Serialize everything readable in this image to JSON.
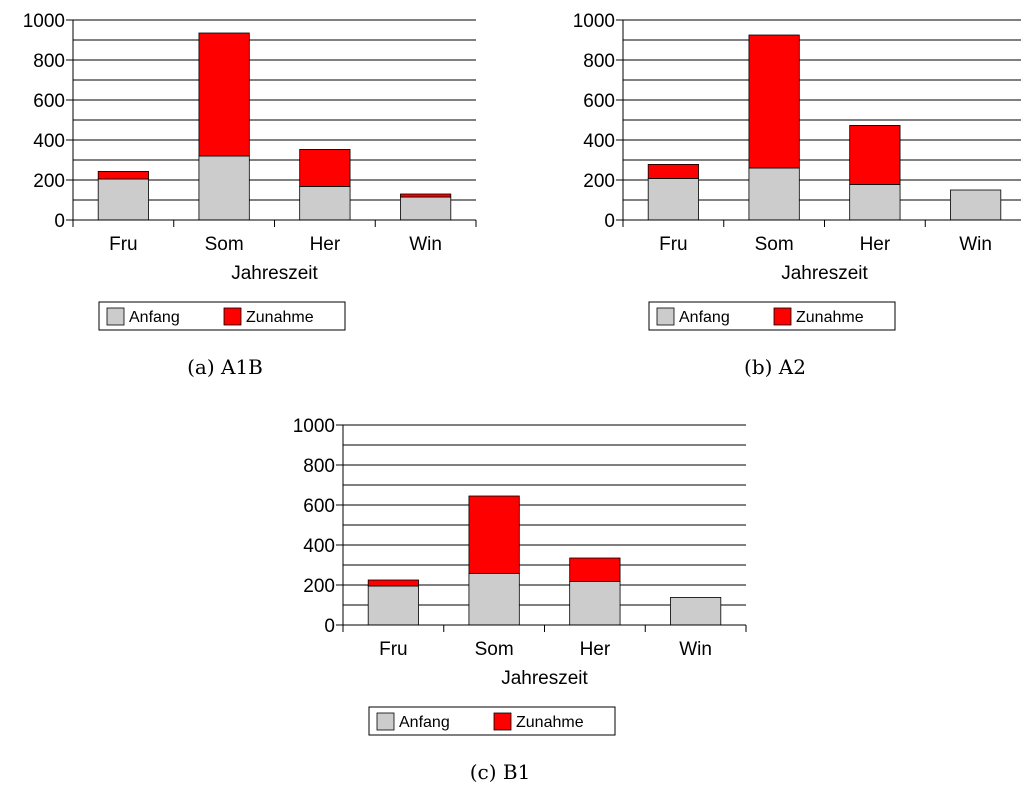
{
  "chart_data": [
    {
      "type": "bar",
      "stacked": true,
      "caption": "(a)  A1B",
      "categories": [
        "Fru",
        "Som",
        "Her",
        "Win"
      ],
      "xlabel": "Jahreszeit",
      "ylabel": "",
      "ylim": [
        0,
        1000
      ],
      "yticks": [
        0,
        200,
        400,
        600,
        800,
        1000
      ],
      "grid": true,
      "legend_placement": "bottom",
      "series": [
        {
          "name": "Anfang",
          "color": "#cccccc",
          "values": [
            205,
            320,
            168,
            115
          ]
        },
        {
          "name": "Zunahme",
          "color": "#ff0000",
          "values": [
            38,
            615,
            185,
            15
          ]
        }
      ]
    },
    {
      "type": "bar",
      "stacked": true,
      "caption": "(b)  A2",
      "categories": [
        "Fru",
        "Som",
        "Her",
        "Win"
      ],
      "xlabel": "Jahreszeit",
      "ylabel": "",
      "ylim": [
        0,
        1000
      ],
      "yticks": [
        0,
        200,
        400,
        600,
        800,
        1000
      ],
      "grid": true,
      "legend_placement": "bottom",
      "series": [
        {
          "name": "Anfang",
          "color": "#cccccc",
          "values": [
            208,
            260,
            178,
            150
          ]
        },
        {
          "name": "Zunahme",
          "color": "#ff0000",
          "values": [
            70,
            665,
            295,
            0
          ]
        }
      ]
    },
    {
      "type": "bar",
      "stacked": true,
      "caption": "(c)  B1",
      "categories": [
        "Fru",
        "Som",
        "Her",
        "Win"
      ],
      "xlabel": "Jahreszeit",
      "ylabel": "",
      "ylim": [
        0,
        1000
      ],
      "yticks": [
        0,
        200,
        400,
        600,
        800,
        1000
      ],
      "grid": true,
      "legend_placement": "bottom",
      "series": [
        {
          "name": "Anfang",
          "color": "#cccccc",
          "values": [
            195,
            258,
            218,
            138
          ]
        },
        {
          "name": "Zunahme",
          "color": "#ff0000",
          "values": [
            30,
            387,
            117,
            0
          ]
        }
      ]
    }
  ]
}
